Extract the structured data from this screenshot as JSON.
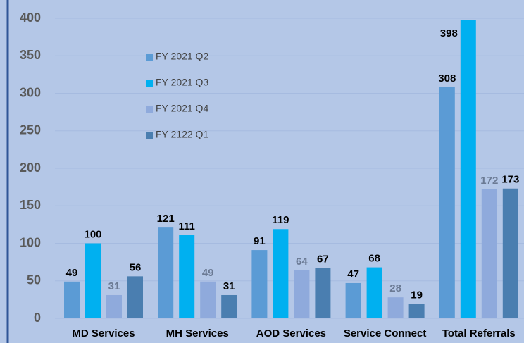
{
  "chart_data": {
    "type": "bar",
    "categories": [
      "MD Services",
      "MH Services",
      "AOD Services",
      "Service Connect",
      "Total Referrals"
    ],
    "series": [
      {
        "name": "FY 2021 Q2",
        "color": "#5b9bd5",
        "label_color": "#000000",
        "values": [
          49,
          121,
          91,
          47,
          308
        ]
      },
      {
        "name": "FY 2021 Q3",
        "color": "#00b0f0",
        "label_color": "#000000",
        "values": [
          100,
          111,
          119,
          68,
          398
        ]
      },
      {
        "name": "FY 2021 Q4",
        "color": "#8faadc",
        "label_color": "#6b7a94",
        "values": [
          31,
          49,
          64,
          28,
          172
        ]
      },
      {
        "name": "FY 2122 Q1",
        "color": "#4a7eb0",
        "label_color": "#000000",
        "values": [
          56,
          31,
          67,
          19,
          173
        ]
      }
    ],
    "ylim": [
      0,
      400
    ],
    "yticks": [
      0,
      50,
      100,
      150,
      200,
      250,
      300,
      350,
      400
    ],
    "grid": true
  }
}
